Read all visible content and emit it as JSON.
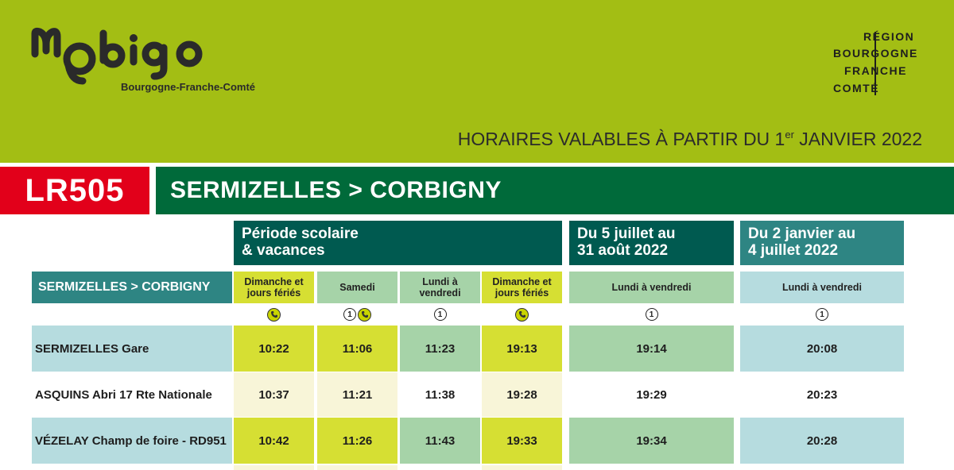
{
  "brand": {
    "logo_text": "mobigo",
    "logo_subtitle": "Bourgogne-Franche-Comté",
    "region_lines": [
      "RÉGION",
      "BOURGOGNE",
      "FRANCHE",
      "COMTÉ"
    ]
  },
  "validity": {
    "prefix": "HORAIRES VALABLES À PARTIR DU 1",
    "sup": "er",
    "suffix": " JANVIER 2022"
  },
  "line": {
    "code": "LR505",
    "route": "SERMIZELLES > CORBIGNY"
  },
  "periods": [
    {
      "label": "Période scolaire\n& vacances"
    },
    {
      "label": "Du 5 juillet au\n31 août 2022"
    },
    {
      "label": "Du 2 janvier au\n4 juillet 2022"
    }
  ],
  "direction_label": "SERMIZELLES > CORBIGNY",
  "columns": [
    {
      "day": "Dimanche et\njours fériés",
      "note": [
        "phone"
      ]
    },
    {
      "day": "Samedi",
      "note": [
        "1",
        "phone"
      ]
    },
    {
      "day": "Lundi à\nvendredi",
      "note": [
        "1"
      ]
    },
    {
      "day": "Dimanche et\njours fériés",
      "note": [
        "phone"
      ]
    },
    {
      "day": "Lundi à vendredi",
      "note": [
        "1"
      ]
    },
    {
      "day": "Lundi à vendredi",
      "note": [
        "1"
      ]
    }
  ],
  "stops": [
    {
      "name": "SERMIZELLES Gare",
      "times": [
        "10:22",
        "11:06",
        "11:23",
        "19:13",
        "19:14",
        "20:08"
      ]
    },
    {
      "name": "ASQUINS Abri 17 Rte Nationale",
      "times": [
        "10:37",
        "11:21",
        "11:38",
        "19:28",
        "19:29",
        "20:23"
      ]
    },
    {
      "name": "VÉZELAY Champ de foire - RD951",
      "times": [
        "10:42",
        "11:26",
        "11:43",
        "19:33",
        "19:34",
        "20:28"
      ]
    }
  ],
  "colors": {
    "header_green": "#a3be14",
    "line_red": "#e2001a",
    "line_green": "#006a3a",
    "period_dark": "#005a50",
    "teal": "#2e8583",
    "yellow_cell": "#d6df33",
    "yellow_pale": "#f8f5d8",
    "green_cell": "#a6d3a8",
    "blue_cell": "#b6dcdf"
  }
}
